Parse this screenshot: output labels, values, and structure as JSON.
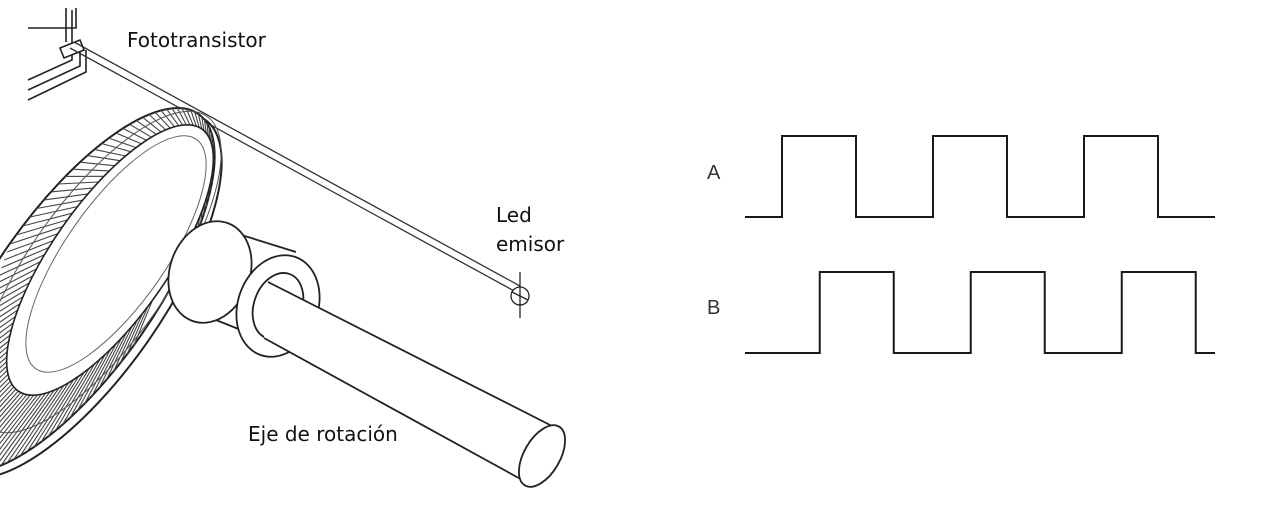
{
  "encoder": {
    "phototransistor_label": "Fototransistor",
    "led_label_line1": "Led",
    "led_label_line2": "emisor",
    "shaft_label": "Eje de rotación"
  },
  "waveforms": {
    "channels": [
      {
        "name": "A",
        "phase_offset": 0
      },
      {
        "name": "B",
        "phase_offset": 0.25
      }
    ],
    "cycles": 3,
    "line_color": "#1a1a1a"
  }
}
